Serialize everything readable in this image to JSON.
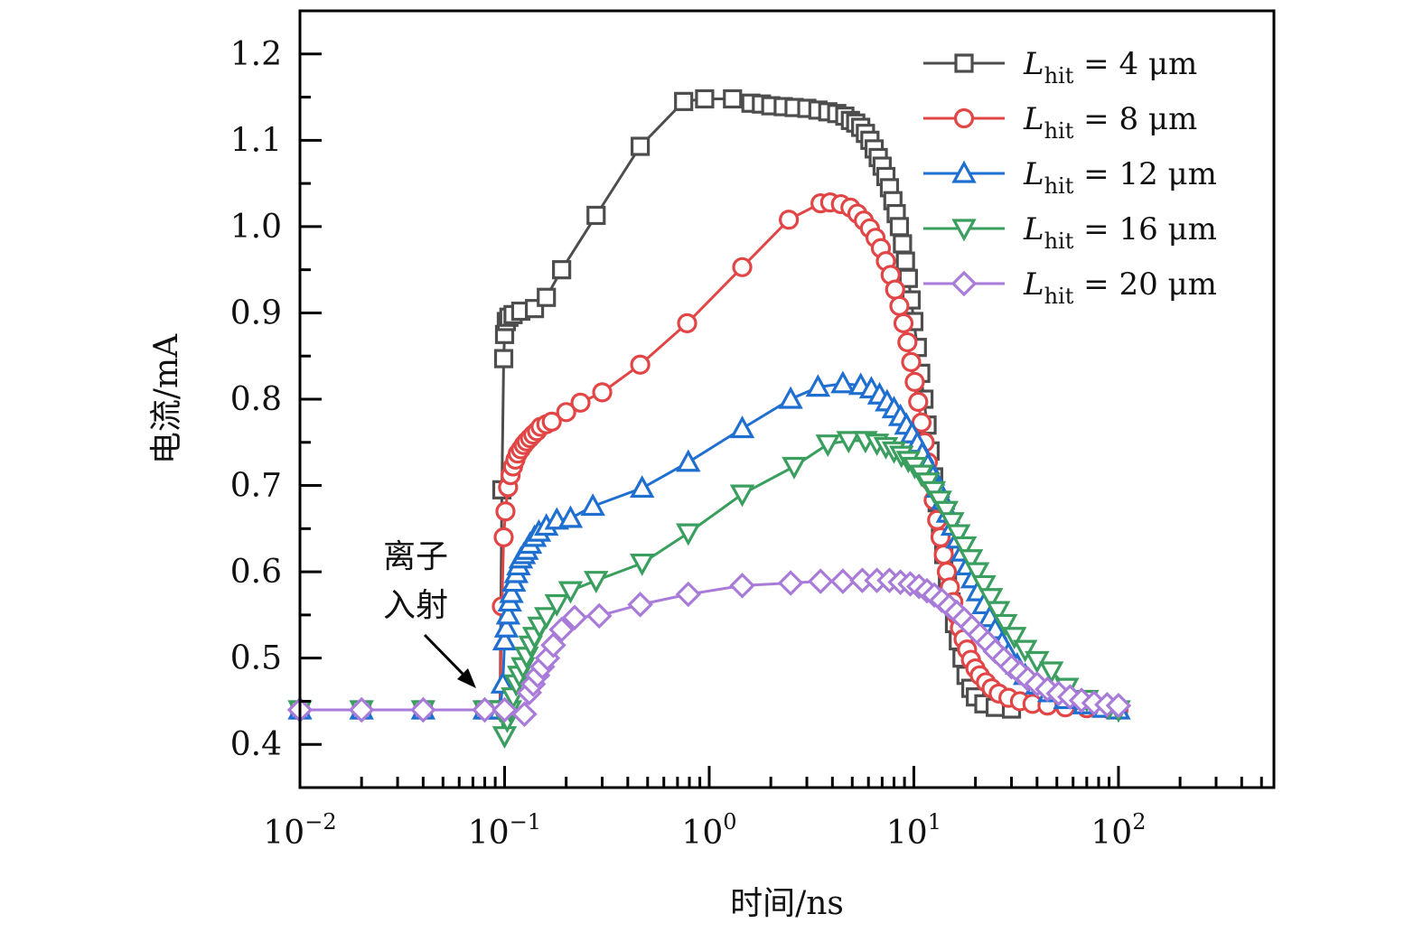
{
  "chart_data": {
    "type": "line",
    "title": "",
    "xlabel": "时间/ns",
    "ylabel": "电流/mA",
    "xscale": "log",
    "xlim": [
      0.01,
      575
    ],
    "ylim": [
      0.35,
      1.25
    ],
    "x_ticks": [
      {
        "value": 0.01,
        "base": "10",
        "exp": "−2"
      },
      {
        "value": 0.1,
        "base": "10",
        "exp": "−1"
      },
      {
        "value": 1,
        "base": "10",
        "exp": "0"
      },
      {
        "value": 10,
        "base": "10",
        "exp": "1"
      },
      {
        "value": 100,
        "base": "10",
        "exp": "2"
      }
    ],
    "y_ticks": [
      {
        "value": 0.4,
        "label": "0.4"
      },
      {
        "value": 0.5,
        "label": "0.5"
      },
      {
        "value": 0.6,
        "label": "0.6"
      },
      {
        "value": 0.7,
        "label": "0.7"
      },
      {
        "value": 0.8,
        "label": "0.8"
      },
      {
        "value": 0.9,
        "label": "0.9"
      },
      {
        "value": 1.0,
        "label": "1.0"
      },
      {
        "value": 1.1,
        "label": "1.1"
      },
      {
        "value": 1.2,
        "label": "1.2"
      }
    ],
    "grid": false,
    "legend_position": "top-right",
    "annotation": {
      "line1": "离子",
      "line2": "入射",
      "x": 0.085,
      "y": 0.445
    },
    "series": [
      {
        "name": "L_hit = 4 μm",
        "legend": {
          "L": "L",
          "sub": "hit",
          "rest": " = 4 μm"
        },
        "color": "#4d4d4d",
        "marker": "square",
        "x": [
          0.01,
          0.02,
          0.04,
          0.08,
          0.095,
          0.097,
          0.099,
          0.1,
          0.102,
          0.105,
          0.11,
          0.12,
          0.14,
          0.16,
          0.19,
          0.28,
          0.46,
          0.75,
          0.95,
          1.3,
          1.6,
          1.8,
          2.0,
          2.3,
          2.6,
          3.0,
          3.4,
          3.8,
          4.2,
          4.6,
          4.9,
          5.2,
          5.5,
          5.8,
          6.1,
          6.4,
          6.7,
          7.0,
          7.3,
          7.6,
          7.9,
          8.2,
          8.5,
          8.8,
          9.1,
          9.4,
          9.7,
          10.0,
          10.4,
          10.8,
          11.2,
          11.6,
          12.0,
          12.5,
          13.0,
          13.5,
          14.0,
          14.6,
          15.2,
          15.8,
          16.5,
          17.2,
          18.0,
          19.0,
          20.0,
          22.0,
          25.0,
          30.0
        ],
        "y": [
          0.44,
          0.44,
          0.44,
          0.44,
          0.44,
          0.695,
          0.847,
          0.875,
          0.89,
          0.895,
          0.898,
          0.902,
          0.905,
          0.918,
          0.95,
          1.013,
          1.093,
          1.145,
          1.148,
          1.148,
          1.143,
          1.142,
          1.14,
          1.139,
          1.138,
          1.137,
          1.135,
          1.133,
          1.131,
          1.128,
          1.123,
          1.12,
          1.115,
          1.108,
          1.1,
          1.09,
          1.08,
          1.07,
          1.058,
          1.045,
          1.03,
          1.015,
          1.0,
          0.98,
          0.96,
          0.94,
          0.915,
          0.89,
          0.86,
          0.83,
          0.8,
          0.77,
          0.74,
          0.71,
          0.68,
          0.65,
          0.62,
          0.59,
          0.565,
          0.54,
          0.52,
          0.5,
          0.48,
          0.465,
          0.455,
          0.447,
          0.443,
          0.441
        ]
      },
      {
        "name": "L_hit = 8 μm",
        "legend": {
          "L": "L",
          "sub": "hit",
          "rest": " = 8 μm"
        },
        "color": "#e24545",
        "marker": "circle",
        "x": [
          0.01,
          0.02,
          0.04,
          0.08,
          0.095,
          0.097,
          0.099,
          0.101,
          0.104,
          0.107,
          0.11,
          0.113,
          0.116,
          0.12,
          0.124,
          0.128,
          0.133,
          0.138,
          0.144,
          0.15,
          0.16,
          0.17,
          0.2,
          0.235,
          0.3,
          0.46,
          0.78,
          1.45,
          2.45,
          3.5,
          3.9,
          4.4,
          4.9,
          5.3,
          5.7,
          6.1,
          6.5,
          6.9,
          7.3,
          7.7,
          8.1,
          8.5,
          8.9,
          9.3,
          9.7,
          10.1,
          10.5,
          10.9,
          11.3,
          11.7,
          12.1,
          12.5,
          13.0,
          13.5,
          14.0,
          14.5,
          15.0,
          15.6,
          16.2,
          16.8,
          17.5,
          18.2,
          19.0,
          20.0,
          21.0,
          22.5,
          24.0,
          26.0,
          29.0,
          33.0,
          38.0,
          45.0,
          55.0,
          70.0,
          90.0,
          100.0
        ],
        "y": [
          0.44,
          0.44,
          0.44,
          0.44,
          0.44,
          0.56,
          0.64,
          0.67,
          0.698,
          0.712,
          0.722,
          0.73,
          0.737,
          0.742,
          0.747,
          0.751,
          0.755,
          0.759,
          0.763,
          0.768,
          0.771,
          0.774,
          0.785,
          0.796,
          0.808,
          0.84,
          0.888,
          0.953,
          1.008,
          1.027,
          1.028,
          1.026,
          1.022,
          1.015,
          1.007,
          0.998,
          0.987,
          0.975,
          0.96,
          0.944,
          0.927,
          0.908,
          0.888,
          0.866,
          0.843,
          0.82,
          0.797,
          0.773,
          0.75,
          0.727,
          0.705,
          0.683,
          0.66,
          0.64,
          0.62,
          0.6,
          0.582,
          0.565,
          0.55,
          0.535,
          0.522,
          0.51,
          0.498,
          0.488,
          0.48,
          0.472,
          0.465,
          0.459,
          0.454,
          0.45,
          0.447,
          0.445,
          0.443,
          0.442,
          0.441,
          0.44
        ]
      },
      {
        "name": "L_hit = 12 μm",
        "legend": {
          "L": "L",
          "sub": "hit",
          "rest": " = 12 μm"
        },
        "color": "#1f6fd1",
        "marker": "triangle-up",
        "x": [
          0.01,
          0.02,
          0.04,
          0.08,
          0.095,
          0.098,
          0.1,
          0.102,
          0.104,
          0.106,
          0.108,
          0.111,
          0.114,
          0.117,
          0.12,
          0.124,
          0.128,
          0.133,
          0.14,
          0.147,
          0.16,
          0.18,
          0.21,
          0.27,
          0.47,
          0.79,
          1.45,
          2.5,
          3.4,
          4.5,
          5.5,
          6.2,
          6.8,
          7.4,
          8.0,
          8.6,
          9.2,
          9.8,
          10.4,
          11.0,
          11.7,
          12.4,
          13.1,
          13.9,
          14.7,
          15.5,
          16.4,
          17.3,
          18.3,
          19.4,
          20.6,
          22.0,
          23.5,
          25.0,
          27.0,
          29.0,
          32.0,
          35.0,
          40.0,
          46.0,
          55.0,
          68.0,
          85.0,
          100.0
        ],
        "y": [
          0.44,
          0.44,
          0.44,
          0.44,
          0.44,
          0.47,
          0.52,
          0.535,
          0.55,
          0.565,
          0.575,
          0.588,
          0.598,
          0.607,
          0.615,
          0.62,
          0.625,
          0.632,
          0.64,
          0.646,
          0.653,
          0.66,
          0.662,
          0.676,
          0.697,
          0.727,
          0.766,
          0.8,
          0.814,
          0.818,
          0.816,
          0.812,
          0.805,
          0.797,
          0.789,
          0.78,
          0.77,
          0.76,
          0.749,
          0.737,
          0.724,
          0.711,
          0.697,
          0.683,
          0.668,
          0.653,
          0.638,
          0.623,
          0.607,
          0.592,
          0.577,
          0.562,
          0.547,
          0.533,
          0.518,
          0.505,
          0.492,
          0.48,
          0.469,
          0.46,
          0.452,
          0.446,
          0.442,
          0.44
        ]
      },
      {
        "name": "L_hit = 16 μm",
        "legend": {
          "L": "L",
          "sub": "hit",
          "rest": " = 16 μm"
        },
        "color": "#3a9e5f",
        "marker": "triangle-down",
        "x": [
          0.01,
          0.02,
          0.04,
          0.08,
          0.095,
          0.1,
          0.103,
          0.106,
          0.11,
          0.114,
          0.118,
          0.123,
          0.128,
          0.134,
          0.14,
          0.148,
          0.16,
          0.18,
          0.21,
          0.28,
          0.47,
          0.79,
          1.45,
          2.6,
          3.8,
          4.8,
          5.8,
          6.6,
          7.3,
          8.0,
          8.7,
          9.4,
          10.1,
          10.9,
          11.7,
          12.5,
          13.4,
          14.4,
          15.4,
          16.5,
          17.7,
          19.0,
          20.4,
          22.0,
          23.8,
          25.8,
          28.0,
          31.0,
          35.0,
          40.0,
          47.0,
          56.0,
          70.0,
          90.0,
          100.0
        ],
        "y": [
          0.44,
          0.44,
          0.44,
          0.44,
          0.44,
          0.41,
          0.428,
          0.44,
          0.455,
          0.47,
          0.48,
          0.49,
          0.502,
          0.515,
          0.525,
          0.537,
          0.548,
          0.563,
          0.578,
          0.59,
          0.61,
          0.645,
          0.69,
          0.722,
          0.748,
          0.752,
          0.752,
          0.749,
          0.745,
          0.74,
          0.735,
          0.729,
          0.722,
          0.713,
          0.704,
          0.694,
          0.683,
          0.671,
          0.658,
          0.644,
          0.63,
          0.615,
          0.6,
          0.585,
          0.57,
          0.555,
          0.54,
          0.525,
          0.51,
          0.497,
          0.485,
          0.466,
          0.452,
          0.443,
          0.44
        ]
      },
      {
        "name": "L_hit = 20 μm",
        "legend": {
          "L": "L",
          "sub": "hit",
          "rest": " = 20 μm"
        },
        "color": "#a97bd9",
        "marker": "diamond",
        "x": [
          0.01,
          0.02,
          0.04,
          0.08,
          0.1,
          0.125,
          0.132,
          0.138,
          0.145,
          0.153,
          0.162,
          0.173,
          0.19,
          0.22,
          0.29,
          0.46,
          0.79,
          1.45,
          2.5,
          3.5,
          4.5,
          5.6,
          6.6,
          7.6,
          8.6,
          9.6,
          10.6,
          11.6,
          12.6,
          13.7,
          14.9,
          16.2,
          17.6,
          19.2,
          21.0,
          23.0,
          25.0,
          27.5,
          30.0,
          33.0,
          36.0,
          40.0,
          45.0,
          51.0,
          58.0,
          66.0,
          76.0,
          88.0,
          100.0
        ],
        "y": [
          0.44,
          0.44,
          0.44,
          0.44,
          0.44,
          0.435,
          0.46,
          0.47,
          0.48,
          0.49,
          0.5,
          0.515,
          0.533,
          0.547,
          0.549,
          0.562,
          0.574,
          0.584,
          0.587,
          0.589,
          0.589,
          0.59,
          0.59,
          0.59,
          0.588,
          0.586,
          0.583,
          0.578,
          0.573,
          0.567,
          0.56,
          0.553,
          0.545,
          0.536,
          0.527,
          0.518,
          0.508,
          0.499,
          0.49,
          0.483,
          0.476,
          0.47,
          0.464,
          0.459,
          0.455,
          0.451,
          0.448,
          0.446,
          0.445
        ]
      }
    ]
  }
}
